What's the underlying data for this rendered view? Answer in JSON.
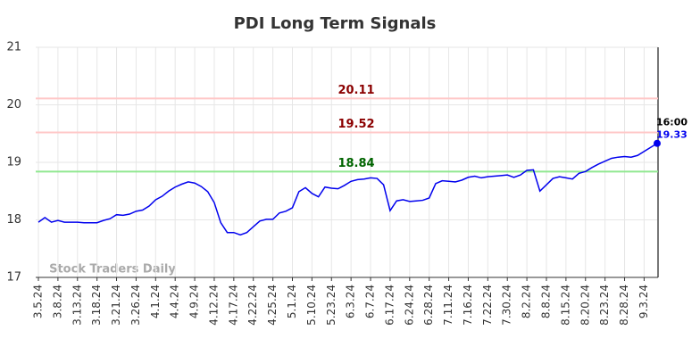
{
  "chart_data": {
    "type": "line",
    "title": "PDI Long Term Signals",
    "watermark": "Stock Traders Daily",
    "categories": [
      "3.5.24",
      null,
      null,
      "3.8.24",
      null,
      null,
      "3.13.24",
      null,
      null,
      "3.18.24",
      null,
      null,
      "3.21.24",
      null,
      null,
      "3.26.24",
      null,
      null,
      "4.1.24",
      null,
      null,
      "4.4.24",
      null,
      null,
      "4.9.24",
      null,
      null,
      "4.12.24",
      null,
      null,
      "4.17.24",
      null,
      null,
      "4.22.24",
      null,
      null,
      "4.25.24",
      null,
      null,
      "5.1.24",
      null,
      null,
      "5.10.24",
      null,
      null,
      "5.23.24",
      null,
      null,
      "6.3.24",
      null,
      null,
      "6.7.24",
      null,
      null,
      "6.17.24",
      null,
      null,
      "6.24.24",
      null,
      null,
      "6.28.24",
      null,
      null,
      "7.11.24",
      null,
      null,
      "7.16.24",
      null,
      null,
      "7.22.24",
      null,
      null,
      "7.30.24",
      null,
      null,
      "8.2.24",
      null,
      null,
      "8.8.24",
      null,
      null,
      "8.15.24",
      null,
      null,
      "8.20.24",
      null,
      null,
      "8.23.24",
      null,
      null,
      "8.28.24",
      null,
      null,
      "9.3.24",
      null,
      null
    ],
    "values": [
      17.96,
      18.04,
      17.96,
      17.99,
      17.96,
      17.96,
      17.96,
      17.95,
      17.95,
      17.95,
      17.99,
      18.02,
      18.09,
      18.08,
      18.1,
      18.15,
      18.17,
      18.24,
      18.35,
      18.41,
      18.5,
      18.57,
      18.62,
      18.66,
      18.64,
      18.58,
      18.49,
      18.3,
      17.95,
      17.78,
      17.78,
      17.74,
      17.78,
      17.88,
      17.98,
      18.01,
      18.01,
      18.12,
      18.15,
      18.21,
      18.49,
      18.56,
      18.46,
      18.4,
      18.57,
      18.55,
      18.54,
      18.6,
      18.67,
      18.7,
      18.71,
      18.73,
      18.72,
      18.61,
      18.16,
      18.33,
      18.35,
      18.32,
      18.33,
      18.34,
      18.38,
      18.63,
      18.68,
      18.67,
      18.66,
      18.69,
      18.74,
      18.76,
      18.73,
      18.75,
      18.76,
      18.77,
      18.78,
      18.74,
      18.78,
      18.86,
      18.87,
      18.5,
      18.61,
      18.72,
      18.75,
      18.73,
      18.71,
      18.81,
      18.84,
      18.91,
      18.97,
      19.02,
      19.07,
      19.09,
      19.1,
      19.09,
      19.12,
      19.19,
      19.26,
      19.33
    ],
    "color": "#0000ee",
    "last_label": "16:00",
    "reference_lines": [
      {
        "value": 20.11,
        "color": "#ffc8c8",
        "label_color": "#8b0000"
      },
      {
        "value": 19.52,
        "color": "#ffc8c8",
        "label_color": "#8b0000"
      },
      {
        "value": 18.84,
        "color": "#90e890",
        "label_color": "#006400"
      }
    ],
    "ylim": [
      17,
      21
    ],
    "yticks": [
      17,
      18,
      19,
      20,
      21
    ],
    "grid": true
  }
}
